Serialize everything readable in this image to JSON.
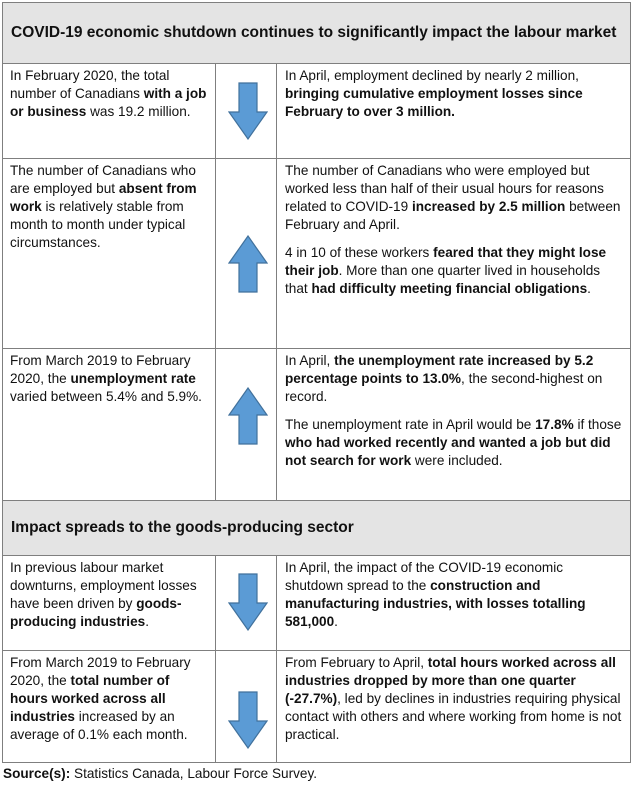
{
  "section1": {
    "title": "COVID-19 economic shutdown continues to significantly impact the labour market"
  },
  "section2": {
    "title": "Impact spreads to the goods-producing sector"
  },
  "rows": [
    {
      "arrow": "down-arrow-icon",
      "left": [
        "In February 2020, the total number of Canadians ",
        "with a job or business",
        " was 19.2 million."
      ],
      "right": [
        [
          "In April, employment declined by nearly 2 million, ",
          "bringing cumulative employment losses since February to over 3 million."
        ]
      ]
    },
    {
      "arrow": "up-arrow-icon",
      "left": [
        "The number of Canadians who are employed but ",
        "absent from work",
        " is relatively stable from month to month under typical circumstances."
      ],
      "right": [
        [
          "The number of Canadians who were employed but worked less than half of their usual hours for reasons related to COVID-19 ",
          "increased by 2.5 million",
          " between February and April."
        ],
        [
          "4 in 10 of these workers ",
          "feared that they might lose their job",
          ". More than one quarter lived in households that ",
          "had difficulty meeting financial obligations",
          "."
        ]
      ]
    },
    {
      "arrow": "up-arrow-icon",
      "left": [
        "From March 2019 to February 2020, the ",
        "unemployment rate",
        " varied between 5.4% and 5.9%."
      ],
      "right": [
        [
          "In April, ",
          "the unemployment rate increased by 5.2 percentage points to 13.0%",
          ", the second-highest on record."
        ],
        [
          "The unemployment rate in April would be ",
          "17.8%",
          " if those ",
          "who had worked recently and wanted a job but did not search for work",
          " were included."
        ]
      ]
    },
    {
      "arrow": "down-arrow-icon",
      "left": [
        "In previous labour market downturns, employment losses have been driven by ",
        "goods-producing industries",
        "."
      ],
      "right": [
        [
          "In April, the impact of the COVID-19 economic shutdown spread to the ",
          "construction and manufacturing industries, with losses totalling 581,000",
          "."
        ]
      ]
    },
    {
      "arrow": "down-arrow-icon",
      "left": [
        "From March 2019 to February 2020, the ",
        "total number of hours worked across all industries",
        " increased by an average of 0.1% each month."
      ],
      "right": [
        [
          "From February to April, ",
          "total hours worked across all industries dropped by more than one quarter (-27.7%)",
          ", led by declines in industries requiring physical contact with others and where working from home is not practical."
        ]
      ]
    }
  ],
  "source": {
    "label": "Source(s):",
    "text": " Statistics Canada, Labour Force Survey."
  },
  "colors": {
    "arrow_fill": "#5b9bd5",
    "arrow_stroke": "#41719c",
    "header_bg": "#e4e4e4",
    "border": "#7f7f7f"
  }
}
